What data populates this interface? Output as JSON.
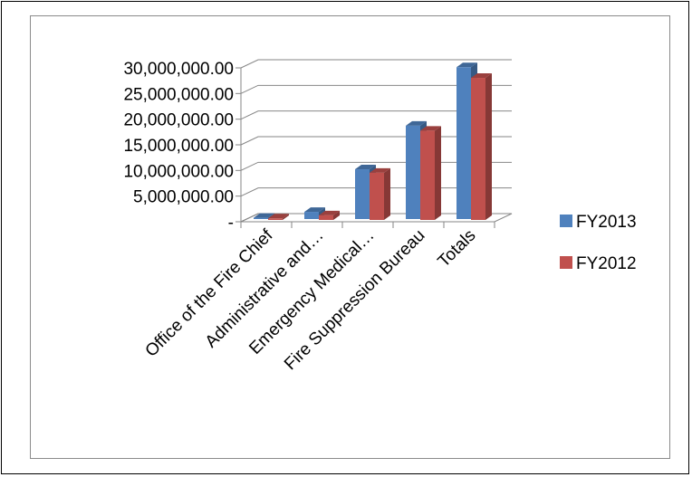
{
  "chart_data": {
    "type": "bar",
    "categories": [
      "Office of the Fire Chief",
      "Administrative and…",
      "Emergency Medical…",
      "Fire Suppression Bureau",
      "Totals"
    ],
    "series": [
      {
        "name": "FY2013",
        "values": [
          250000,
          1400000,
          9700000,
          18200000,
          29600000
        ],
        "color": "#4f81bd"
      },
      {
        "name": "FY2012",
        "values": [
          300000,
          900000,
          9200000,
          17400000,
          27700000
        ],
        "color": "#c0504d"
      }
    ],
    "y_ticks": [
      "-",
      "5,000,000.00",
      "10,000,000.00",
      "15,000,000.00",
      "20,000,000.00",
      "25,000,000.00",
      "30,000,000.00"
    ],
    "ylim": [
      0,
      30000000
    ],
    "grid": true,
    "style": "3d-clustered-column",
    "legend_position": "right"
  }
}
